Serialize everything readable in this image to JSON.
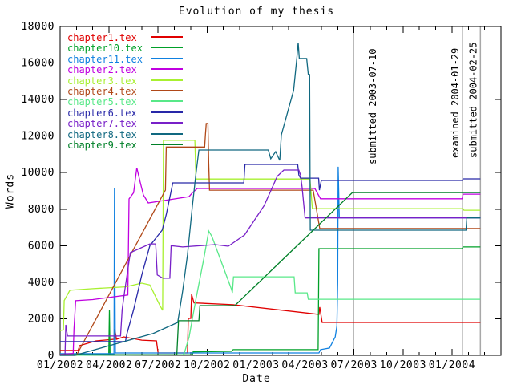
{
  "chart_data": {
    "type": "line",
    "title": "Evolution of my thesis",
    "xlabel": "Date",
    "ylabel": "Words",
    "x_unit": "months since 2002-01-01",
    "xlim": [
      0,
      27
    ],
    "ylim": [
      0,
      18000
    ],
    "grid": false,
    "legend_position": "top-left",
    "x_ticks": [
      {
        "month": 0,
        "label": "01/2002"
      },
      {
        "month": 3,
        "label": "04/2002"
      },
      {
        "month": 6,
        "label": "07/2002"
      },
      {
        "month": 9,
        "label": "10/2002"
      },
      {
        "month": 12,
        "label": "01/2003"
      },
      {
        "month": 15,
        "label": "04/2003"
      },
      {
        "month": 18,
        "label": "07/2003"
      },
      {
        "month": 21,
        "label": "10/2003"
      },
      {
        "month": 24,
        "label": "01/2004"
      }
    ],
    "x_minor_tick_step": 1,
    "y_ticks": [
      0,
      2000,
      4000,
      6000,
      8000,
      10000,
      12000,
      14000,
      16000,
      18000
    ],
    "annotations": [
      {
        "label": "submitted 2003-07-10",
        "date": "2003-07-10",
        "month": 17.97,
        "line_color": "#a8a8a8",
        "label_side": "right"
      },
      {
        "label": "examined 2004-01-29",
        "date": "2004-01-29",
        "month": 24.65,
        "line_color": "#a8a8a8",
        "label_side": "left"
      },
      {
        "label": "submitted 2004-02-25",
        "date": "2004-02-25",
        "month": 25.74,
        "line_color": "#a8a8a8",
        "label_side": "left"
      }
    ],
    "series": [
      {
        "name": "chapter1.tex",
        "color": "#e00000",
        "points": [
          [
            0,
            270
          ],
          [
            1.1,
            270
          ],
          [
            1.2,
            530
          ],
          [
            2.2,
            790
          ],
          [
            3.3,
            880
          ],
          [
            3.35,
            1450
          ],
          [
            3.45,
            880
          ],
          [
            3.9,
            1010
          ],
          [
            5.0,
            830
          ],
          [
            5.9,
            790
          ],
          [
            6.0,
            130
          ],
          [
            7.8,
            130
          ],
          [
            7.85,
            2020
          ],
          [
            8.0,
            2020
          ],
          [
            8.05,
            3340
          ],
          [
            8.2,
            2870
          ],
          [
            10.6,
            2770
          ],
          [
            15.85,
            2240
          ],
          [
            15.9,
            2640
          ],
          [
            16.05,
            1800
          ],
          [
            25.74,
            1800
          ]
        ]
      },
      {
        "name": "chapter10.tex",
        "color": "#00a028",
        "points": [
          [
            0,
            30
          ],
          [
            2.98,
            30
          ],
          [
            3.02,
            2460
          ],
          [
            3.06,
            30
          ],
          [
            8.1,
            30
          ],
          [
            8.15,
            190
          ],
          [
            10.5,
            220
          ],
          [
            10.6,
            310
          ],
          [
            15.8,
            310
          ],
          [
            15.85,
            5840
          ],
          [
            24.63,
            5840
          ],
          [
            24.68,
            5930
          ],
          [
            25.74,
            5930
          ]
        ]
      },
      {
        "name": "chapter11.tex",
        "color": "#0f80e0",
        "points": [
          [
            0,
            90
          ],
          [
            3.3,
            90
          ],
          [
            3.33,
            9130
          ],
          [
            3.38,
            130
          ],
          [
            15.85,
            130
          ],
          [
            15.95,
            310
          ],
          [
            16.5,
            400
          ],
          [
            16.85,
            1010
          ],
          [
            16.95,
            1600
          ],
          [
            17.0,
            4000
          ],
          [
            17.03,
            10320
          ],
          [
            17.1,
            7520
          ],
          [
            25.74,
            7520
          ]
        ]
      },
      {
        "name": "chapter2.tex",
        "color": "#c000e0",
        "points": [
          [
            0,
            50
          ],
          [
            0.8,
            100
          ],
          [
            0.85,
            1450
          ],
          [
            0.95,
            2990
          ],
          [
            2.0,
            3050
          ],
          [
            4.15,
            3300
          ],
          [
            4.22,
            8560
          ],
          [
            4.5,
            8900
          ],
          [
            4.7,
            10270
          ],
          [
            4.9,
            9500
          ],
          [
            5.1,
            8780
          ],
          [
            5.4,
            8340
          ],
          [
            7.0,
            8560
          ],
          [
            7.9,
            8690
          ],
          [
            8.1,
            8900
          ],
          [
            8.4,
            9130
          ],
          [
            15.6,
            9130
          ],
          [
            15.95,
            8570
          ],
          [
            24.63,
            8570
          ],
          [
            24.68,
            8820
          ],
          [
            25.74,
            8820
          ]
        ]
      },
      {
        "name": "chapter3.tex",
        "color": "#a8f030",
        "points": [
          [
            0,
            1350
          ],
          [
            0.2,
            1400
          ],
          [
            0.25,
            3000
          ],
          [
            0.6,
            3560
          ],
          [
            2.0,
            3650
          ],
          [
            4.0,
            3750
          ],
          [
            5.0,
            3950
          ],
          [
            5.5,
            3850
          ],
          [
            6.1,
            2750
          ],
          [
            6.28,
            2460
          ],
          [
            6.33,
            11770
          ],
          [
            8.25,
            11770
          ],
          [
            8.32,
            9650
          ],
          [
            15.3,
            9650
          ],
          [
            15.45,
            8030
          ],
          [
            24.68,
            8030
          ],
          [
            24.73,
            7940
          ],
          [
            25.74,
            7940
          ]
        ]
      },
      {
        "name": "chapter4.tex",
        "color": "#b04818",
        "points": [
          [
            0,
            0
          ],
          [
            1.0,
            0
          ],
          [
            6.45,
            9050
          ],
          [
            6.5,
            11400
          ],
          [
            8.85,
            11400
          ],
          [
            8.9,
            12100
          ],
          [
            8.95,
            12690
          ],
          [
            9.05,
            12690
          ],
          [
            9.1,
            10500
          ],
          [
            9.15,
            9040
          ],
          [
            15.5,
            9040
          ],
          [
            15.7,
            8000
          ],
          [
            15.9,
            6940
          ],
          [
            25.74,
            6940
          ]
        ]
      },
      {
        "name": "chapter5.tex",
        "color": "#58e888",
        "points": [
          [
            0,
            0
          ],
          [
            7.5,
            30
          ],
          [
            7.6,
            100
          ],
          [
            7.9,
            1000
          ],
          [
            8.3,
            3000
          ],
          [
            8.8,
            5300
          ],
          [
            9.1,
            6800
          ],
          [
            9.3,
            6500
          ],
          [
            10.5,
            3600
          ],
          [
            10.55,
            3420
          ],
          [
            10.62,
            4300
          ],
          [
            14.33,
            4300
          ],
          [
            14.4,
            3420
          ],
          [
            15.13,
            3420
          ],
          [
            15.2,
            3070
          ],
          [
            25.74,
            3070
          ]
        ]
      },
      {
        "name": "chapter6.tex",
        "color": "#2828a8",
        "points": [
          [
            0,
            750
          ],
          [
            4.0,
            750
          ],
          [
            4.1,
            1200
          ],
          [
            4.5,
            2500
          ],
          [
            5.0,
            4400
          ],
          [
            5.5,
            6000
          ],
          [
            6.25,
            6850
          ],
          [
            6.5,
            7700
          ],
          [
            6.9,
            9440
          ],
          [
            11.25,
            9440
          ],
          [
            11.32,
            10450
          ],
          [
            14.55,
            10450
          ],
          [
            14.62,
            9880
          ],
          [
            14.72,
            9700
          ],
          [
            15.83,
            9700
          ],
          [
            15.88,
            9040
          ],
          [
            16.0,
            9570
          ],
          [
            24.63,
            9570
          ],
          [
            24.68,
            9660
          ],
          [
            25.74,
            9660
          ]
        ]
      },
      {
        "name": "chapter7.tex",
        "color": "#7820c8",
        "points": [
          [
            0,
            0
          ],
          [
            0.3,
            50
          ],
          [
            0.35,
            1670
          ],
          [
            0.45,
            1060
          ],
          [
            3.7,
            1060
          ],
          [
            3.8,
            2500
          ],
          [
            3.95,
            3500
          ],
          [
            4.1,
            4400
          ],
          [
            4.3,
            5620
          ],
          [
            5.5,
            6100
          ],
          [
            5.85,
            6100
          ],
          [
            5.95,
            4400
          ],
          [
            6.3,
            4220
          ],
          [
            6.72,
            4220
          ],
          [
            6.8,
            6000
          ],
          [
            7.5,
            5930
          ],
          [
            9.5,
            6060
          ],
          [
            10.3,
            5970
          ],
          [
            11.3,
            6590
          ],
          [
            12.5,
            8200
          ],
          [
            13.3,
            9800
          ],
          [
            13.7,
            10140
          ],
          [
            14.62,
            10140
          ],
          [
            14.72,
            9880
          ],
          [
            14.82,
            9200
          ],
          [
            15.0,
            7520
          ],
          [
            25.74,
            7520
          ]
        ]
      },
      {
        "name": "chapter8.tex",
        "color": "#106880",
        "points": [
          [
            0,
            0
          ],
          [
            0.9,
            0
          ],
          [
            5.7,
            1200
          ],
          [
            7.2,
            1800
          ],
          [
            7.5,
            3500
          ],
          [
            7.8,
            5500
          ],
          [
            8.1,
            8170
          ],
          [
            8.3,
            9800
          ],
          [
            8.5,
            11240
          ],
          [
            12.75,
            11240
          ],
          [
            12.9,
            10760
          ],
          [
            13.2,
            11150
          ],
          [
            13.45,
            10670
          ],
          [
            13.55,
            12070
          ],
          [
            14.3,
            14500
          ],
          [
            14.5,
            16300
          ],
          [
            14.58,
            17120
          ],
          [
            14.65,
            16250
          ],
          [
            15.1,
            16250
          ],
          [
            15.2,
            15370
          ],
          [
            15.28,
            15370
          ],
          [
            15.32,
            6850
          ],
          [
            24.86,
            6850
          ],
          [
            24.91,
            7520
          ],
          [
            25.74,
            7520
          ]
        ]
      },
      {
        "name": "chapter9.tex",
        "color": "#008028",
        "points": [
          [
            0,
            30
          ],
          [
            7.15,
            30
          ],
          [
            7.25,
            1890
          ],
          [
            8.5,
            1890
          ],
          [
            8.56,
            2720
          ],
          [
            10.7,
            2720
          ],
          [
            17.9,
            8910
          ],
          [
            25.74,
            8910
          ]
        ]
      }
    ]
  }
}
